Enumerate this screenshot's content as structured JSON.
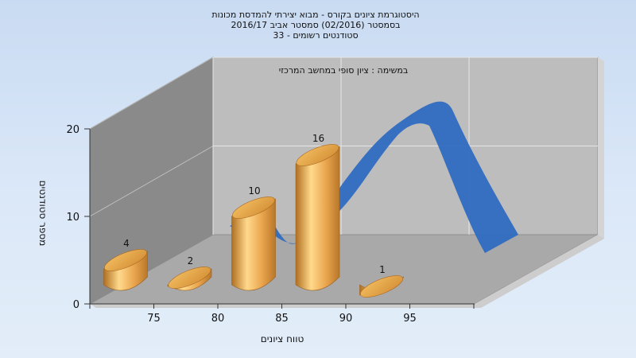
{
  "chart_data": {
    "type": "bar",
    "title_lines": [
      "היסטוגרמת ציונים בקורס - מבוא יצירתי להמדסת מכונות",
      "בסמסטר  (02/2016)  סמסטר אביב 2016/17",
      "סטודנטים רשומים - 33"
    ],
    "subtitle": "במשימה : ציון סופי במחשב המרכזי",
    "xlabel": "טווח ציונים",
    "ylabel": "מספר סטודנטים",
    "categories": [
      "75",
      "80",
      "85",
      "90",
      "95"
    ],
    "values": [
      4,
      2,
      10,
      16,
      1
    ],
    "value_labels": [
      "4",
      "2",
      "10",
      "16",
      "1"
    ],
    "y_ticks": [
      "0",
      "10",
      "20"
    ],
    "ylim": [
      0,
      20
    ],
    "grid": true,
    "legend": "none",
    "colors": {
      "bar": "#e7a64c",
      "bar_light": "#ffd98c",
      "bar_dark": "#b06f21",
      "curve": "#2f6cc0",
      "wall_left": "#8a8a8a",
      "wall_back": "#bdbdbd",
      "floor": "#a9a9a9"
    }
  }
}
